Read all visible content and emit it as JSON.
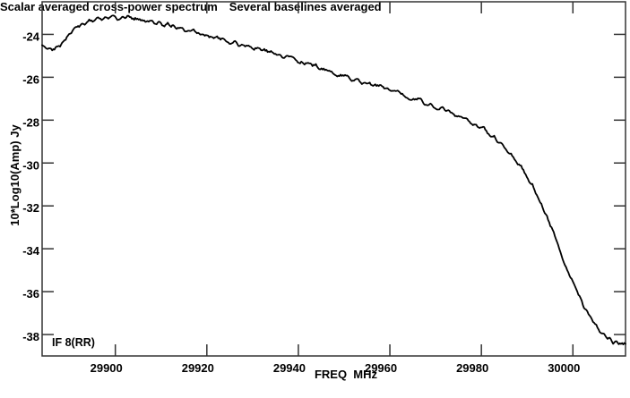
{
  "figure": {
    "if_label": "IF 8(RR)",
    "caption_left": "Scalar averaged cross-power spectrum",
    "caption_right": "Several baselines averaged"
  },
  "colors": {
    "background": "#ffffff",
    "frame": "#333333",
    "curve": "#000000",
    "text": "#000000"
  },
  "chart_data": {
    "type": "line",
    "title": "",
    "xlabel": "FREQ  MHz",
    "ylabel": "10*Log10(Amp) Jy",
    "xlim": [
      29884,
      30011.5
    ],
    "ylim": [
      -39.0,
      -22.48
    ],
    "xticks": [
      29900,
      29920,
      29940,
      29960,
      29980,
      30000
    ],
    "yticks": [
      -24,
      -26,
      -28,
      -30,
      -32,
      -34,
      -36,
      -38
    ],
    "grid": false,
    "legend": null,
    "annotations": [
      "IF 8(RR)"
    ],
    "series": [
      {
        "name": "scalar averaged cross-power spectrum, several baselines averaged",
        "color": "#000000",
        "points": [
          [
            29884.2,
            -24.5
          ],
          [
            29885.3,
            -24.7
          ],
          [
            29886.6,
            -24.72
          ],
          [
            29888.0,
            -24.48
          ],
          [
            29889.5,
            -24.12
          ],
          [
            29891.0,
            -23.82
          ],
          [
            29893.0,
            -23.52
          ],
          [
            29895.0,
            -23.33
          ],
          [
            29897.0,
            -23.24
          ],
          [
            29899.0,
            -23.2
          ],
          [
            29901.0,
            -23.2
          ],
          [
            29903.0,
            -23.24
          ],
          [
            29905.0,
            -23.3
          ],
          [
            29907.0,
            -23.38
          ],
          [
            29909.0,
            -23.47
          ],
          [
            29911.0,
            -23.56
          ],
          [
            29913.0,
            -23.66
          ],
          [
            29915.5,
            -23.78
          ],
          [
            29918.0,
            -23.9
          ],
          [
            29920.0,
            -24.0
          ],
          [
            29922.5,
            -24.16
          ],
          [
            29925.0,
            -24.33
          ],
          [
            29927.5,
            -24.47
          ],
          [
            29930.0,
            -24.6
          ],
          [
            29932.5,
            -24.75
          ],
          [
            29935.0,
            -24.9
          ],
          [
            29937.5,
            -25.08
          ],
          [
            29940.0,
            -25.25
          ],
          [
            29942.5,
            -25.4
          ],
          [
            29945.0,
            -25.55
          ],
          [
            29947.5,
            -25.8
          ],
          [
            29950.0,
            -26.0
          ],
          [
            29952.5,
            -26.12
          ],
          [
            29955.0,
            -26.3
          ],
          [
            29957.5,
            -26.42
          ],
          [
            29960.0,
            -26.55
          ],
          [
            29962.5,
            -26.75
          ],
          [
            29965.0,
            -27.0
          ],
          [
            29967.5,
            -27.18
          ],
          [
            29970.0,
            -27.35
          ],
          [
            29972.5,
            -27.55
          ],
          [
            29975.0,
            -27.8
          ],
          [
            29977.5,
            -28.05
          ],
          [
            29980.0,
            -28.35
          ],
          [
            29982.5,
            -28.8
          ],
          [
            29985.0,
            -29.25
          ],
          [
            29987.5,
            -29.85
          ],
          [
            29989.5,
            -30.45
          ],
          [
            29991.5,
            -31.2
          ],
          [
            29993.5,
            -32.15
          ],
          [
            29995.5,
            -33.15
          ],
          [
            29997.5,
            -34.25
          ],
          [
            29999.5,
            -35.35
          ],
          [
            30001.5,
            -36.3
          ],
          [
            30003.5,
            -37.1
          ],
          [
            30005.5,
            -37.75
          ],
          [
            30007.0,
            -38.1
          ],
          [
            30008.5,
            -38.3
          ],
          [
            30010.0,
            -38.4
          ],
          [
            30011.5,
            -38.44
          ]
        ]
      }
    ]
  }
}
